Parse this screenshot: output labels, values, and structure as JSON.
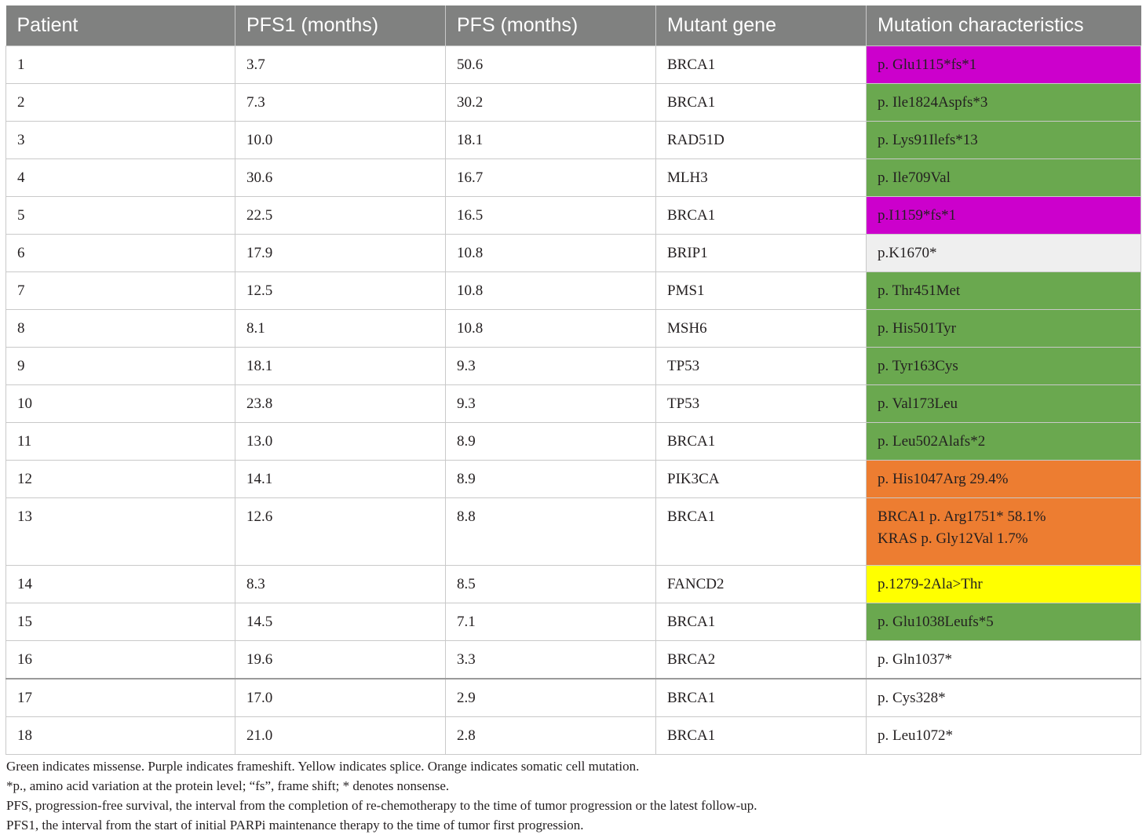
{
  "table": {
    "headers": [
      "Patient",
      "PFS1 (months)",
      "PFS (months)",
      "Mutant gene",
      "Mutation characteristics"
    ],
    "rows": [
      {
        "patient": "1",
        "pfs1": "3.7",
        "pfs": "50.6",
        "gene": "BRCA1",
        "mutation": [
          "p. Glu1115*fs*1"
        ],
        "color": "#cc00cc"
      },
      {
        "patient": "2",
        "pfs1": "7.3",
        "pfs": "30.2",
        "gene": "BRCA1",
        "mutation": [
          "p. Ile1824Aspfs*3"
        ],
        "color": "#6aa84f"
      },
      {
        "patient": "3",
        "pfs1": "10.0",
        "pfs": "18.1",
        "gene": "RAD51D",
        "mutation": [
          "p. Lys91Ilefs*13"
        ],
        "color": "#6aa84f"
      },
      {
        "patient": "4",
        "pfs1": "30.6",
        "pfs": "16.7",
        "gene": "MLH3",
        "mutation": [
          "p. Ile709Val"
        ],
        "color": "#6aa84f"
      },
      {
        "patient": "5",
        "pfs1": "22.5",
        "pfs": "16.5",
        "gene": "BRCA1",
        "mutation": [
          "p.I1159*fs*1"
        ],
        "color": "#cc00cc"
      },
      {
        "patient": "6",
        "pfs1": "17.9",
        "pfs": "10.8",
        "gene": "BRIP1",
        "mutation": [
          "p.K1670*"
        ],
        "color": "#efefef"
      },
      {
        "patient": "7",
        "pfs1": "12.5",
        "pfs": "10.8",
        "gene": "PMS1",
        "mutation": [
          "p. Thr451Met"
        ],
        "color": "#6aa84f"
      },
      {
        "patient": "8",
        "pfs1": "8.1",
        "pfs": "10.8",
        "gene": "MSH6",
        "mutation": [
          "p. His501Tyr"
        ],
        "color": "#6aa84f"
      },
      {
        "patient": "9",
        "pfs1": "18.1",
        "pfs": "9.3",
        "gene": "TP53",
        "mutation": [
          "p. Tyr163Cys"
        ],
        "color": "#6aa84f"
      },
      {
        "patient": "10",
        "pfs1": "23.8",
        "pfs": "9.3",
        "gene": "TP53",
        "mutation": [
          "p. Val173Leu"
        ],
        "color": "#6aa84f"
      },
      {
        "patient": "11",
        "pfs1": "13.0",
        "pfs": "8.9",
        "gene": "BRCA1",
        "mutation": [
          "p. Leu502Alafs*2"
        ],
        "color": "#6aa84f"
      },
      {
        "patient": "12",
        "pfs1": "14.1",
        "pfs": "8.9",
        "gene": "PIK3CA",
        "mutation": [
          "p. His1047Arg 29.4%"
        ],
        "color": "#ed7d31"
      },
      {
        "patient": "13",
        "pfs1": "12.6",
        "pfs": "8.8",
        "gene": "BRCA1",
        "mutation": [
          "BRCA1 p. Arg1751* 58.1%",
          "KRAS p. Gly12Val 1.7%"
        ],
        "color": "#ed7d31"
      },
      {
        "patient": "14",
        "pfs1": "8.3",
        "pfs": "8.5",
        "gene": "FANCD2",
        "mutation": [
          "p.1279-2Ala>Thr"
        ],
        "color": "#ffff00"
      },
      {
        "patient": "15",
        "pfs1": "14.5",
        "pfs": "7.1",
        "gene": "BRCA1",
        "mutation": [
          "p. Glu1038Leufs*5"
        ],
        "color": "#6aa84f"
      },
      {
        "patient": "16",
        "pfs1": "19.6",
        "pfs": "3.3",
        "gene": "BRCA2",
        "mutation": [
          "p. Gln1037*"
        ],
        "color": "#ffffff"
      },
      {
        "patient": "17",
        "pfs1": "17.0",
        "pfs": "2.9",
        "gene": "BRCA1",
        "mutation": [
          "p. Cys328*"
        ],
        "color": "#ffffff"
      },
      {
        "patient": "18",
        "pfs1": "21.0",
        "pfs": "2.8",
        "gene": "BRCA1",
        "mutation": [
          "p. Leu1072*"
        ],
        "color": "#ffffff"
      }
    ]
  },
  "footnotes": [
    "Green indicates missense. Purple indicates frameshift. Yellow indicates splice. Orange indicates somatic cell mutation.",
    "*p., amino acid variation at the protein level; “fs”, frame shift; * denotes nonsense.",
    "PFS, progression-free survival, the interval from the completion of re-chemotherapy to the time of tumor progression or the latest follow-up.",
    "PFS1, the interval from the start of initial PARPi maintenance therapy to the time of tumor first progression."
  ]
}
